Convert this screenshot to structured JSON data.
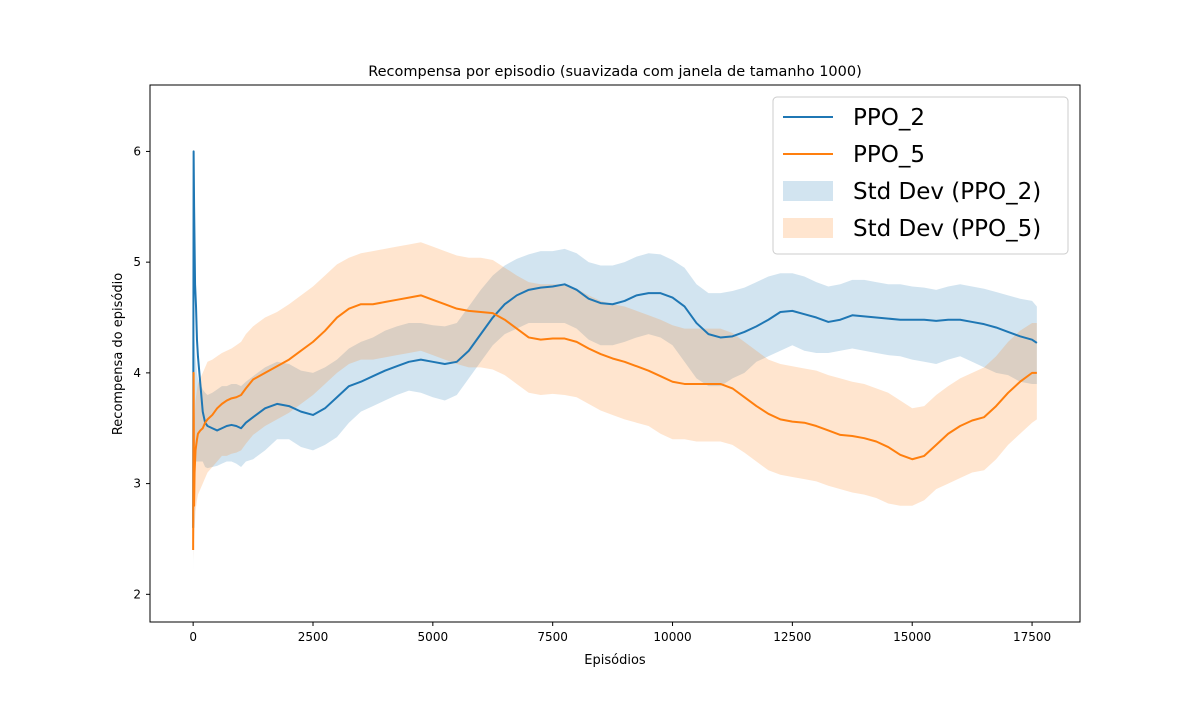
{
  "chart_data": {
    "type": "line",
    "title": "Recompensa por episodio (suavizada com janela de tamanho 1000)",
    "xlabel": "Episódios",
    "ylabel": "Recompensa do episódio",
    "xlim": [
      -900,
      18500
    ],
    "ylim": [
      1.75,
      6.6
    ],
    "x_ticks": [
      0,
      2500,
      5000,
      7500,
      10000,
      12500,
      15000,
      17500
    ],
    "y_ticks": [
      2,
      3,
      4,
      5,
      6
    ],
    "grid": false,
    "legend": {
      "position": "top-right",
      "items": [
        {
          "label": "PPO_2",
          "kind": "line",
          "color": "#1f77b4"
        },
        {
          "label": "PPO_5",
          "kind": "line",
          "color": "#ff7f0e"
        },
        {
          "label": "Std Dev (PPO_2)",
          "kind": "band",
          "color": "#1f77b4"
        },
        {
          "label": "Std Dev (PPO_5)",
          "kind": "band",
          "color": "#ff7f0e"
        }
      ]
    },
    "series": [
      {
        "name": "PPO_2",
        "color": "#1f77b4",
        "band_color": "#1f77b4",
        "x": [
          0,
          10,
          20,
          40,
          60,
          80,
          100,
          150,
          200,
          250,
          300,
          400,
          500,
          600,
          700,
          800,
          900,
          1000,
          1100,
          1250,
          1500,
          1750,
          2000,
          2250,
          2500,
          2750,
          3000,
          3250,
          3500,
          3750,
          4000,
          4250,
          4500,
          4750,
          5000,
          5250,
          5500,
          5750,
          6000,
          6250,
          6500,
          6750,
          7000,
          7250,
          7500,
          7750,
          8000,
          8250,
          8500,
          8750,
          9000,
          9250,
          9500,
          9750,
          10000,
          10250,
          10500,
          10750,
          11000,
          11250,
          11500,
          11750,
          12000,
          12250,
          12500,
          12750,
          13000,
          13250,
          13500,
          13750,
          14000,
          14250,
          14500,
          14750,
          15000,
          15250,
          15500,
          15750,
          16000,
          16250,
          16500,
          16750,
          17000,
          17250,
          17500,
          17600
        ],
        "y": [
          2.6,
          6.0,
          5.5,
          4.8,
          4.6,
          4.3,
          4.15,
          3.9,
          3.65,
          3.55,
          3.52,
          3.5,
          3.48,
          3.5,
          3.52,
          3.53,
          3.52,
          3.5,
          3.55,
          3.6,
          3.68,
          3.72,
          3.7,
          3.65,
          3.62,
          3.68,
          3.78,
          3.88,
          3.92,
          3.97,
          4.02,
          4.06,
          4.1,
          4.12,
          4.1,
          4.08,
          4.1,
          4.2,
          4.35,
          4.5,
          4.62,
          4.7,
          4.75,
          4.77,
          4.78,
          4.8,
          4.75,
          4.67,
          4.63,
          4.62,
          4.65,
          4.7,
          4.72,
          4.72,
          4.68,
          4.6,
          4.45,
          4.35,
          4.32,
          4.33,
          4.37,
          4.42,
          4.48,
          4.55,
          4.56,
          4.53,
          4.5,
          4.46,
          4.48,
          4.52,
          4.51,
          4.5,
          4.49,
          4.48,
          4.48,
          4.48,
          4.47,
          4.48,
          4.48,
          4.46,
          4.44,
          4.41,
          4.37,
          4.33,
          4.3,
          4.27
        ],
        "std_lower": [
          2.2,
          3.2,
          3.2,
          3.2,
          3.2,
          3.2,
          3.2,
          3.2,
          3.2,
          3.15,
          3.14,
          3.15,
          3.16,
          3.18,
          3.2,
          3.2,
          3.18,
          3.15,
          3.2,
          3.22,
          3.3,
          3.4,
          3.4,
          3.33,
          3.3,
          3.35,
          3.42,
          3.55,
          3.65,
          3.7,
          3.75,
          3.8,
          3.84,
          3.82,
          3.78,
          3.75,
          3.8,
          3.95,
          4.1,
          4.25,
          4.35,
          4.4,
          4.45,
          4.45,
          4.45,
          4.45,
          4.4,
          4.3,
          4.25,
          4.25,
          4.28,
          4.32,
          4.35,
          4.32,
          4.25,
          4.1,
          3.95,
          3.88,
          3.88,
          3.95,
          4.0,
          4.1,
          4.15,
          4.2,
          4.25,
          4.2,
          4.18,
          4.18,
          4.2,
          4.22,
          4.2,
          4.18,
          4.16,
          4.15,
          4.12,
          4.1,
          4.08,
          4.12,
          4.15,
          4.1,
          4.05,
          4.0,
          3.98,
          3.92,
          3.9,
          3.9
        ],
        "std_upper": [
          4.5,
          4.5,
          4.4,
          4.2,
          4.1,
          4.0,
          3.95,
          3.9,
          3.85,
          3.82,
          3.8,
          3.82,
          3.85,
          3.88,
          3.88,
          3.9,
          3.9,
          3.88,
          3.92,
          3.97,
          4.05,
          4.1,
          4.08,
          4.02,
          4.0,
          4.05,
          4.12,
          4.22,
          4.28,
          4.32,
          4.38,
          4.42,
          4.45,
          4.45,
          4.43,
          4.42,
          4.45,
          4.6,
          4.75,
          4.88,
          4.97,
          5.03,
          5.07,
          5.1,
          5.1,
          5.12,
          5.08,
          5.0,
          4.97,
          4.97,
          5.0,
          5.05,
          5.08,
          5.07,
          5.02,
          4.95,
          4.8,
          4.72,
          4.72,
          4.74,
          4.77,
          4.82,
          4.87,
          4.9,
          4.9,
          4.87,
          4.82,
          4.78,
          4.8,
          4.84,
          4.84,
          4.82,
          4.8,
          4.8,
          4.78,
          4.77,
          4.75,
          4.78,
          4.8,
          4.78,
          4.76,
          4.73,
          4.7,
          4.67,
          4.65,
          4.6
        ]
      },
      {
        "name": "PPO_5",
        "color": "#ff7f0e",
        "band_color": "#ff7f0e",
        "x": [
          0,
          10,
          20,
          30,
          50,
          80,
          100,
          150,
          200,
          250,
          300,
          400,
          500,
          600,
          700,
          800,
          900,
          1000,
          1100,
          1250,
          1500,
          1750,
          2000,
          2250,
          2500,
          2750,
          3000,
          3250,
          3500,
          3750,
          4000,
          4250,
          4500,
          4750,
          5000,
          5250,
          5500,
          5750,
          6000,
          6250,
          6500,
          6750,
          7000,
          7250,
          7500,
          7750,
          8000,
          8250,
          8500,
          8750,
          9000,
          9250,
          9500,
          9750,
          10000,
          10250,
          10500,
          10750,
          11000,
          11250,
          11500,
          11750,
          12000,
          12250,
          12500,
          12750,
          13000,
          13250,
          13500,
          13750,
          14000,
          14250,
          14500,
          14750,
          15000,
          15250,
          15500,
          15750,
          16000,
          16250,
          16500,
          16750,
          17000,
          17250,
          17500,
          17600
        ],
        "y": [
          2.4,
          4.0,
          2.8,
          3.1,
          3.3,
          3.4,
          3.45,
          3.48,
          3.5,
          3.55,
          3.58,
          3.62,
          3.68,
          3.72,
          3.75,
          3.77,
          3.78,
          3.8,
          3.86,
          3.94,
          4.0,
          4.06,
          4.12,
          4.2,
          4.28,
          4.38,
          4.5,
          4.58,
          4.62,
          4.62,
          4.64,
          4.66,
          4.68,
          4.7,
          4.66,
          4.62,
          4.58,
          4.56,
          4.55,
          4.54,
          4.48,
          4.4,
          4.32,
          4.3,
          4.31,
          4.31,
          4.28,
          4.22,
          4.17,
          4.13,
          4.1,
          4.06,
          4.02,
          3.97,
          3.92,
          3.9,
          3.9,
          3.9,
          3.9,
          3.86,
          3.78,
          3.7,
          3.63,
          3.58,
          3.56,
          3.55,
          3.52,
          3.48,
          3.44,
          3.43,
          3.41,
          3.38,
          3.33,
          3.26,
          3.22,
          3.25,
          3.35,
          3.45,
          3.52,
          3.57,
          3.6,
          3.7,
          3.82,
          3.92,
          4.0,
          4.0
        ],
        "std_lower": [
          2.3,
          2.5,
          2.5,
          2.6,
          2.75,
          2.85,
          2.9,
          2.95,
          3.0,
          3.05,
          3.1,
          3.15,
          3.2,
          3.25,
          3.25,
          3.27,
          3.28,
          3.3,
          3.36,
          3.44,
          3.52,
          3.58,
          3.64,
          3.72,
          3.8,
          3.9,
          4.0,
          4.08,
          4.12,
          4.12,
          4.14,
          4.16,
          4.18,
          4.2,
          4.16,
          4.12,
          4.08,
          4.05,
          4.05,
          4.03,
          3.98,
          3.9,
          3.82,
          3.8,
          3.81,
          3.8,
          3.78,
          3.72,
          3.66,
          3.62,
          3.58,
          3.55,
          3.52,
          3.45,
          3.4,
          3.4,
          3.38,
          3.38,
          3.38,
          3.35,
          3.28,
          3.2,
          3.12,
          3.08,
          3.06,
          3.04,
          3.02,
          2.98,
          2.95,
          2.92,
          2.9,
          2.87,
          2.82,
          2.8,
          2.8,
          2.85,
          2.95,
          3.0,
          3.05,
          3.1,
          3.12,
          3.22,
          3.35,
          3.45,
          3.55,
          3.58
        ],
        "std_upper": [
          4.0,
          4.2,
          3.5,
          3.6,
          3.75,
          3.85,
          3.9,
          3.95,
          4.0,
          4.05,
          4.1,
          4.12,
          4.15,
          4.18,
          4.2,
          4.22,
          4.25,
          4.28,
          4.35,
          4.42,
          4.5,
          4.55,
          4.62,
          4.7,
          4.78,
          4.88,
          4.98,
          5.04,
          5.08,
          5.1,
          5.12,
          5.14,
          5.16,
          5.18,
          5.14,
          5.1,
          5.06,
          5.04,
          5.04,
          5.02,
          4.95,
          4.88,
          4.82,
          4.8,
          4.8,
          4.8,
          4.76,
          4.7,
          4.65,
          4.62,
          4.6,
          4.56,
          4.52,
          4.48,
          4.43,
          4.4,
          4.4,
          4.4,
          4.4,
          4.36,
          4.28,
          4.2,
          4.12,
          4.08,
          4.06,
          4.04,
          4.02,
          3.98,
          3.95,
          3.92,
          3.9,
          3.86,
          3.82,
          3.75,
          3.68,
          3.7,
          3.8,
          3.88,
          3.95,
          4.0,
          4.05,
          4.15,
          4.28,
          4.38,
          4.45,
          4.45
        ]
      }
    ]
  }
}
